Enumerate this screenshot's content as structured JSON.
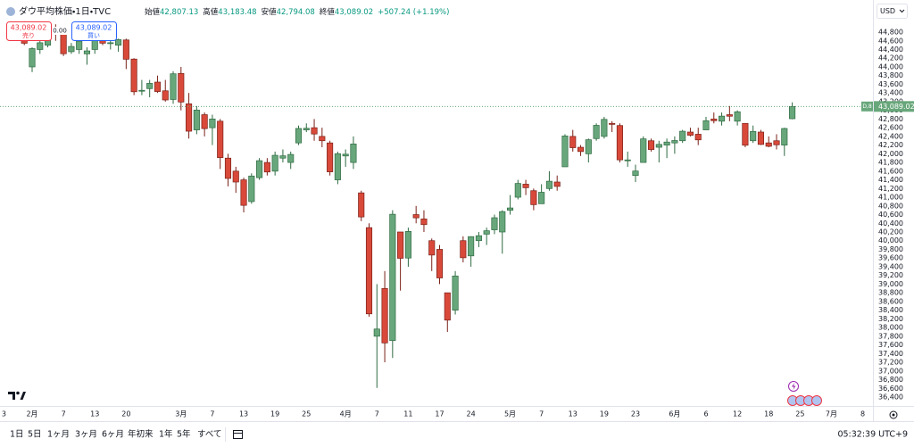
{
  "chart_data": {
    "type": "candlestick",
    "title": "ダウ平均株価・1日・TVC",
    "ohlc_labels": [
      {
        "label": "始値",
        "value": "42,807.13"
      },
      {
        "label": "高値",
        "value": "43,183.48"
      },
      {
        "label": "安値",
        "value": "42,794.08"
      },
      {
        "label": "終値",
        "value": "43,089.02"
      }
    ],
    "change": "+507.24 (+1.19%)",
    "sell": {
      "price": "43,089.02",
      "label": "売り"
    },
    "spread": "0.00",
    "buy": {
      "price": "43,089.02",
      "label": "買い"
    },
    "currency": "USD",
    "last_price_label": "43,089.02",
    "last_price_tag": "D,8",
    "grid": false,
    "up_color": "#68a77b",
    "down_color": "#d9493a",
    "up_border": "#2f6b42",
    "down_border": "#7a2118",
    "series": [
      {
        "open": [
          44700,
          44900,
          44000,
          44400,
          44500,
          44880,
          44760,
          44350,
          44400,
          44300,
          44400,
          44720,
          44550,
          44500,
          44620,
          44180,
          43450,
          43500,
          43650,
          43450,
          43250,
          43850,
          43150,
          42550,
          42900,
          42600,
          42750,
          41900,
          41600,
          41400,
          40900,
          41450,
          41800,
          41600,
          41900,
          41800,
          42250,
          42550,
          42600,
          42400,
          42250,
          41400,
          41950,
          41800,
          41100,
          40300,
          37800,
          38900,
          37700,
          40200,
          39600,
          40600,
          40500,
          40000,
          39800,
          38800,
          38400,
          40000,
          39650,
          40000,
          40150,
          40250,
          40200,
          40700,
          41000,
          41300,
          41150,
          40850,
          41200,
          41350,
          41700,
          42400,
          42150,
          42000,
          42350,
          42400,
          42700,
          42650,
          41850,
          41500,
          41800,
          42300,
          42150,
          42200,
          42250,
          42300,
          42500,
          42450,
          42550,
          42800,
          42750,
          42900,
          42750,
          42700,
          42300,
          42500,
          42250,
          42300,
          42200,
          42807.13
        ],
        "high": [
          44920,
          45050,
          44450,
          44600,
          44900,
          44980,
          44900,
          44550,
          44650,
          44450,
          44750,
          44800,
          44650,
          44650,
          44650,
          44200,
          43700,
          43700,
          43800,
          43700,
          43900,
          44000,
          43400,
          43100,
          42950,
          42900,
          42800,
          42000,
          41700,
          41450,
          41550,
          41900,
          41900,
          42050,
          42100,
          42050,
          42650,
          42700,
          42800,
          42600,
          42300,
          42050,
          42100,
          42400,
          41150,
          40400,
          39000,
          39300,
          40700,
          40200,
          40300,
          40800,
          40700,
          40050,
          39900,
          38800,
          39300,
          40100,
          40100,
          40200,
          40300,
          40600,
          40700,
          41050,
          41400,
          41400,
          41200,
          41300,
          41600,
          41500,
          42450,
          42550,
          42200,
          42350,
          42700,
          42850,
          42750,
          42700,
          42050,
          41750,
          42400,
          42350,
          42300,
          42350,
          42400,
          42550,
          42600,
          42600,
          42850,
          42950,
          42950,
          43100,
          43000,
          42700,
          42650,
          42550,
          42400,
          42450,
          42600,
          43183.48
        ],
        "low": [
          44600,
          44500,
          43880,
          44300,
          44450,
          44600,
          44250,
          44300,
          44300,
          44050,
          44300,
          44500,
          44400,
          44350,
          43950,
          43350,
          43350,
          43300,
          43400,
          43200,
          43150,
          43000,
          42350,
          42450,
          42400,
          42200,
          41650,
          41250,
          41100,
          40650,
          40850,
          41400,
          41500,
          41500,
          41800,
          41650,
          42200,
          42500,
          42300,
          42150,
          41500,
          41300,
          41700,
          41650,
          40450,
          38250,
          36611,
          37200,
          37300,
          38850,
          39400,
          40400,
          40200,
          39300,
          39000,
          37900,
          38300,
          39500,
          39400,
          39850,
          39900,
          40150,
          39700,
          40600,
          40950,
          41050,
          40700,
          40850,
          41150,
          41150,
          41700,
          42050,
          41950,
          41800,
          42300,
          42350,
          42500,
          41800,
          41700,
          41350,
          41800,
          42050,
          41800,
          41900,
          42000,
          42250,
          42400,
          42200,
          42550,
          42700,
          42650,
          42750,
          42650,
          42150,
          42250,
          42200,
          42150,
          42100,
          41950,
          42794.08
        ],
        "close": [
          44882,
          44544,
          44421,
          44556,
          44873,
          44747,
          44303,
          44470,
          44593,
          44368,
          44711,
          44546,
          44556,
          44627,
          44176,
          43428,
          43461,
          43621,
          43433,
          43239,
          43841,
          43191,
          42520,
          43006,
          42579,
          42801,
          41911,
          41433,
          41350,
          40813,
          41488,
          41841,
          41581,
          41965,
          41953,
          41985,
          42583,
          42587,
          42455,
          42300,
          41584,
          42002,
          41990,
          42226,
          40546,
          38315,
          37966,
          37646,
          40608,
          39594,
          40213,
          40525,
          40369,
          39669,
          39142,
          38171,
          39187,
          39607,
          40093,
          40114,
          40228,
          40528,
          40669,
          40753,
          41317,
          41219,
          40829,
          41114,
          41368,
          41249,
          42410,
          42140,
          42051,
          42323,
          42655,
          42792,
          42677,
          41860,
          41859,
          41603,
          42343,
          42098,
          42216,
          42270,
          42305,
          42519,
          42427,
          42320,
          42762,
          42761,
          42867,
          42865,
          42967,
          42197,
          42515,
          42215,
          42172,
          42207,
          42582,
          43089.02
        ]
      }
    ],
    "xlim": [
      -2.1,
      109.3
    ],
    "xticks": [
      {
        "value": -1.6,
        "label": "3"
      },
      {
        "value": 2,
        "label": "2月"
      },
      {
        "value": 6,
        "label": "7"
      },
      {
        "value": 10,
        "label": "13"
      },
      {
        "value": 14,
        "label": "20"
      },
      {
        "value": 21,
        "label": "3月"
      },
      {
        "value": 25,
        "label": "7"
      },
      {
        "value": 29,
        "label": "13"
      },
      {
        "value": 33,
        "label": "19"
      },
      {
        "value": 37,
        "label": "25"
      },
      {
        "value": 42,
        "label": "4月"
      },
      {
        "value": 46,
        "label": "7"
      },
      {
        "value": 50,
        "label": "11"
      },
      {
        "value": 54,
        "label": "17"
      },
      {
        "value": 58,
        "label": "24"
      },
      {
        "value": 63,
        "label": "5月"
      },
      {
        "value": 67,
        "label": "7"
      },
      {
        "value": 71,
        "label": "13"
      },
      {
        "value": 75,
        "label": "19"
      },
      {
        "value": 79,
        "label": "23"
      },
      {
        "value": 84,
        "label": "6月"
      },
      {
        "value": 88,
        "label": "6"
      },
      {
        "value": 92,
        "label": "12"
      },
      {
        "value": 96,
        "label": "18"
      },
      {
        "value": 100,
        "label": "25"
      },
      {
        "value": 104,
        "label": "7月"
      },
      {
        "value": 108,
        "label": "8"
      }
    ],
    "ylim": [
      36195,
      45129
    ],
    "yticks": [
      {
        "value": 36400,
        "label": "36,400"
      },
      {
        "value": 36600,
        "label": "36,600"
      },
      {
        "value": 36800,
        "label": "36,800"
      },
      {
        "value": 37000,
        "label": "37,000"
      },
      {
        "value": 37200,
        "label": "37,200"
      },
      {
        "value": 37400,
        "label": "37,400"
      },
      {
        "value": 37600,
        "label": "37,600"
      },
      {
        "value": 37800,
        "label": "37,800"
      },
      {
        "value": 38000,
        "label": "38,000"
      },
      {
        "value": 38200,
        "label": "38,200"
      },
      {
        "value": 38400,
        "label": "38,400"
      },
      {
        "value": 38600,
        "label": "38,600"
      },
      {
        "value": 38800,
        "label": "38,800"
      },
      {
        "value": 39000,
        "label": "39,000"
      },
      {
        "value": 39200,
        "label": "39,200"
      },
      {
        "value": 39400,
        "label": "39,400"
      },
      {
        "value": 39600,
        "label": "39,600"
      },
      {
        "value": 39800,
        "label": "39,800"
      },
      {
        "value": 40000,
        "label": "40,000"
      },
      {
        "value": 40200,
        "label": "40,200"
      },
      {
        "value": 40400,
        "label": "40,400"
      },
      {
        "value": 40600,
        "label": "40,600"
      },
      {
        "value": 40800,
        "label": "40,800"
      },
      {
        "value": 41000,
        "label": "41,000"
      },
      {
        "value": 41200,
        "label": "41,200"
      },
      {
        "value": 41400,
        "label": "41,400"
      },
      {
        "value": 41600,
        "label": "41,600"
      },
      {
        "value": 41800,
        "label": "41,800"
      },
      {
        "value": 42000,
        "label": "42,000"
      },
      {
        "value": 42200,
        "label": "42,200"
      },
      {
        "value": 42400,
        "label": "42,400"
      },
      {
        "value": 42600,
        "label": "42,600"
      },
      {
        "value": 42800,
        "label": "42,800"
      },
      {
        "value": 43000,
        "label": "43,000"
      },
      {
        "value": 43200,
        "label": "43,200"
      },
      {
        "value": 43400,
        "label": "43,400"
      },
      {
        "value": 43600,
        "label": "43,600"
      },
      {
        "value": 43800,
        "label": "43,800"
      },
      {
        "value": 44000,
        "label": "44,000"
      },
      {
        "value": 44200,
        "label": "44,200"
      },
      {
        "value": 44400,
        "label": "44,400"
      },
      {
        "value": 44600,
        "label": "44,600"
      },
      {
        "value": 44800,
        "label": "44,800"
      }
    ],
    "toolbar": {
      "ranges": [
        "1日",
        "5日",
        "1ヶ月",
        "3ヶ月",
        "6ヶ月",
        "年初来",
        "1年",
        "5年",
        "すべて"
      ],
      "time": "05:32:39 UTC+9"
    }
  }
}
